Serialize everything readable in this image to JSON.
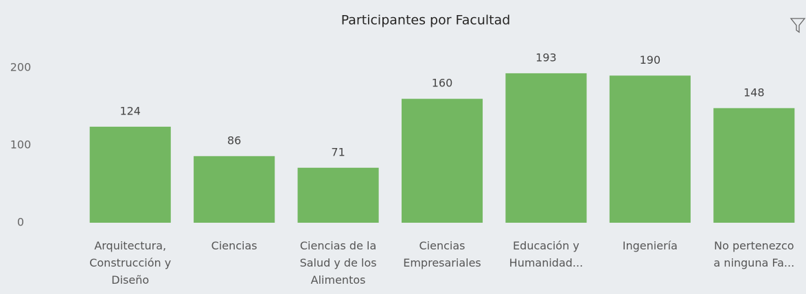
{
  "chart_data": {
    "type": "bar",
    "title": "Participantes por Facultad",
    "categories": [
      "Arquitectura, Construcción y Diseño",
      "Ciencias",
      "Ciencias de la Salud y de los Alimentos",
      "Ciencias Empresariales",
      "Educación y Humanidad...",
      "Ingeniería",
      "No pertenezco a ninguna Fa..."
    ],
    "values": [
      124,
      86,
      71,
      160,
      193,
      190,
      148
    ],
    "color": "#73b761",
    "ylim": [
      0,
      250
    ],
    "yticks": [
      0,
      100,
      200
    ],
    "grid": false
  }
}
